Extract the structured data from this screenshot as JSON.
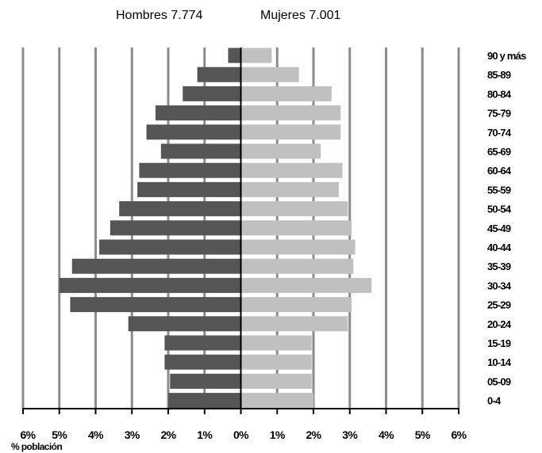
{
  "chart_data": {
    "type": "bar",
    "orientation": "horizontal",
    "subtype": "population-pyramid",
    "header": {
      "left": "Hombres 7.774",
      "right": "Mujeres 7.001"
    },
    "xlabel": "% población",
    "xlim": [
      -6,
      6
    ],
    "x_ticks": [
      -6,
      -5,
      -4,
      -3,
      -2,
      -1,
      0,
      1,
      2,
      3,
      4,
      5,
      6
    ],
    "x_tick_labels": [
      "6%",
      "5%",
      "4%",
      "3%",
      "2%",
      "1%",
      "0%",
      "1%",
      "2%",
      "3%",
      "4%",
      "5%",
      "6%"
    ],
    "categories": [
      "90 y más",
      "85-89",
      "80-84",
      "75-79",
      "70-74",
      "65-69",
      "60-64",
      "55-59",
      "50-54",
      "45-49",
      "40-44",
      "35-39",
      "30-34",
      "25-29",
      "20-24",
      "15-19",
      "10-14",
      "05-09",
      "0-4"
    ],
    "series": [
      {
        "name": "Hombres",
        "color": "#555555",
        "values": [
          0.35,
          1.2,
          1.6,
          2.35,
          2.6,
          2.2,
          2.8,
          2.85,
          3.35,
          3.6,
          3.9,
          4.65,
          5.0,
          4.7,
          3.1,
          2.1,
          2.1,
          1.95,
          2.0
        ]
      },
      {
        "name": "Mujeres",
        "color": "#c0c0c0",
        "values": [
          0.85,
          1.6,
          2.5,
          2.75,
          2.75,
          2.2,
          2.8,
          2.7,
          2.95,
          3.05,
          3.15,
          3.1,
          3.6,
          3.05,
          2.95,
          1.95,
          1.95,
          1.95,
          2.0
        ]
      }
    ],
    "grid": true,
    "gridline_color": "#8c8c8c",
    "legend": "none"
  }
}
